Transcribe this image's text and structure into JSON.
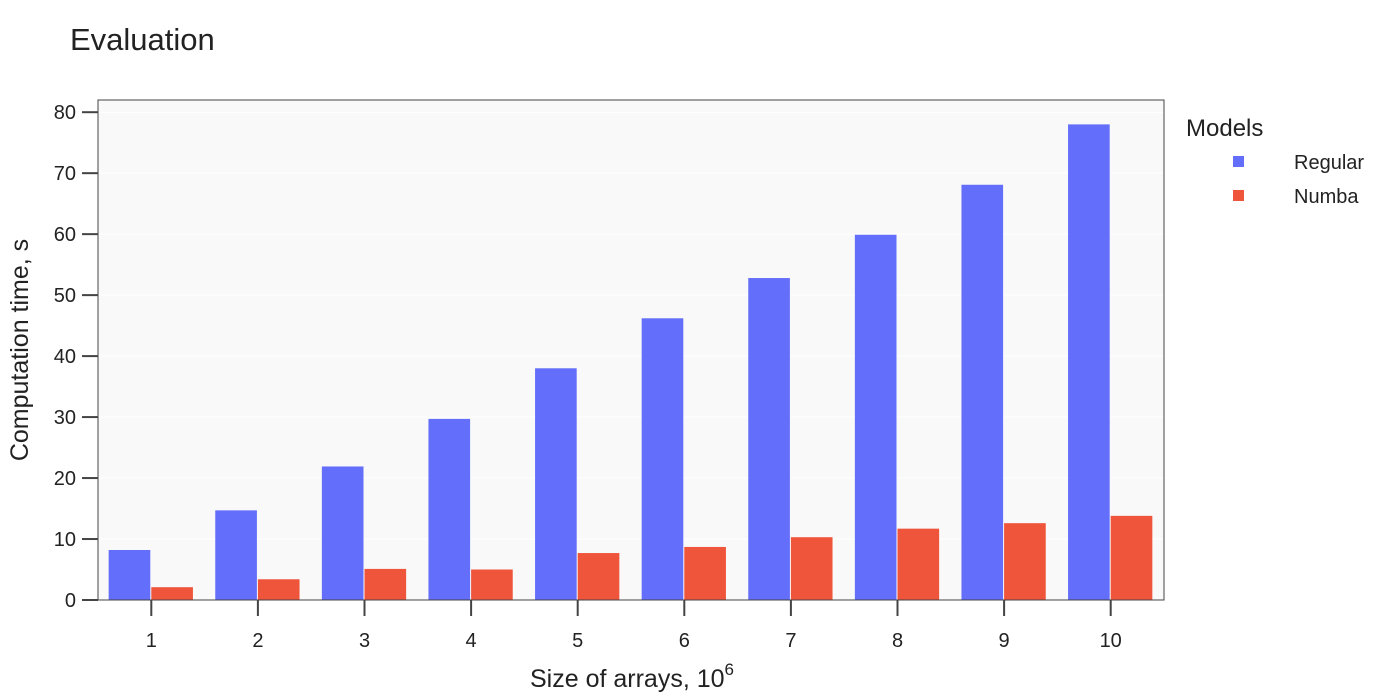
{
  "chart_data": {
    "type": "bar",
    "title": "Evaluation",
    "xlabel": "Size of arrays, 10",
    "xlabel_superscript": "6",
    "ylabel": "Computation time, s",
    "categories": [
      "1",
      "2",
      "3",
      "4",
      "5",
      "6",
      "7",
      "8",
      "9",
      "10"
    ],
    "series": [
      {
        "name": "Regular",
        "color": "#636efa",
        "values": [
          8.2,
          14.7,
          21.9,
          29.7,
          38.0,
          46.2,
          52.8,
          59.9,
          68.1,
          78.0
        ]
      },
      {
        "name": "Numba",
        "color": "#ef553b",
        "values": [
          2.1,
          3.4,
          5.1,
          5.0,
          7.7,
          8.7,
          10.3,
          11.7,
          12.6,
          13.8
        ]
      }
    ],
    "ylim": [
      0,
      82
    ],
    "yticks": [
      0,
      10,
      20,
      30,
      40,
      50,
      60,
      70,
      80
    ],
    "legend": {
      "title": "Models",
      "placement": "top-right, outside plot"
    },
    "grid": true,
    "plot_background": "#f9f9f9",
    "grid_color": "#ffffff"
  }
}
